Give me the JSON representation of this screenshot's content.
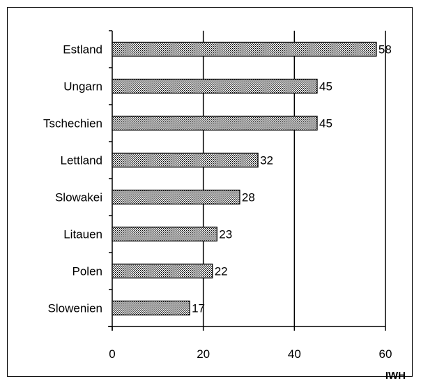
{
  "chart_data": {
    "type": "bar",
    "orientation": "horizontal",
    "categories": [
      "Estland",
      "Ungarn",
      "Tschechien",
      "Lettland",
      "Slowakei",
      "Litauen",
      "Polen",
      "Slowenien"
    ],
    "values": [
      58,
      45,
      45,
      32,
      28,
      23,
      22,
      17
    ],
    "xlim": [
      0,
      60
    ],
    "x_ticks": [
      0,
      20,
      40,
      60
    ],
    "grid": "vertical lines at 20, 40, 60",
    "legend": "none",
    "bar_fill": "dotted hatch",
    "source_label": "IWH"
  }
}
